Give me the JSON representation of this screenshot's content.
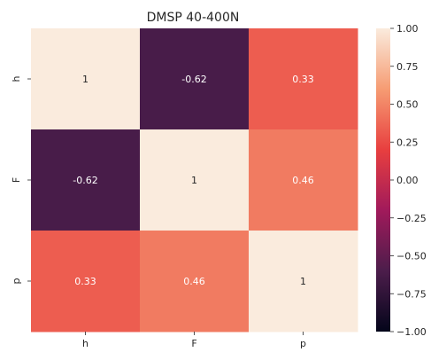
{
  "chart_data": {
    "type": "heatmap",
    "title": "DMSP 40-400N",
    "xlabel": "",
    "ylabel": "",
    "x_categories": [
      "h",
      "F",
      "p"
    ],
    "y_categories": [
      "h",
      "F",
      "p"
    ],
    "values": [
      [
        1,
        -0.62,
        0.33
      ],
      [
        -0.62,
        1,
        0.46
      ],
      [
        0.33,
        0.46,
        1
      ]
    ],
    "cell_labels": [
      [
        "1",
        "-0.62",
        "0.33"
      ],
      [
        "-0.62",
        "1",
        "0.46"
      ],
      [
        "0.33",
        "0.46",
        "1"
      ]
    ],
    "colorbar": {
      "min": -1.0,
      "max": 1.0,
      "ticks": [
        1.0,
        0.75,
        0.5,
        0.25,
        0.0,
        -0.25,
        -0.5,
        -0.75,
        -1.0
      ],
      "tick_labels": [
        "1.00",
        "0.75",
        "0.50",
        "0.25",
        "0.00",
        "−0.25",
        "−0.50",
        "−0.75",
        "−1.00"
      ],
      "colormap": "rocket",
      "colormap_stops": [
        "#03051a",
        "#4c1d4b",
        "#a11a5b",
        "#e83f3f",
        "#f69c73",
        "#faebdd"
      ]
    }
  }
}
